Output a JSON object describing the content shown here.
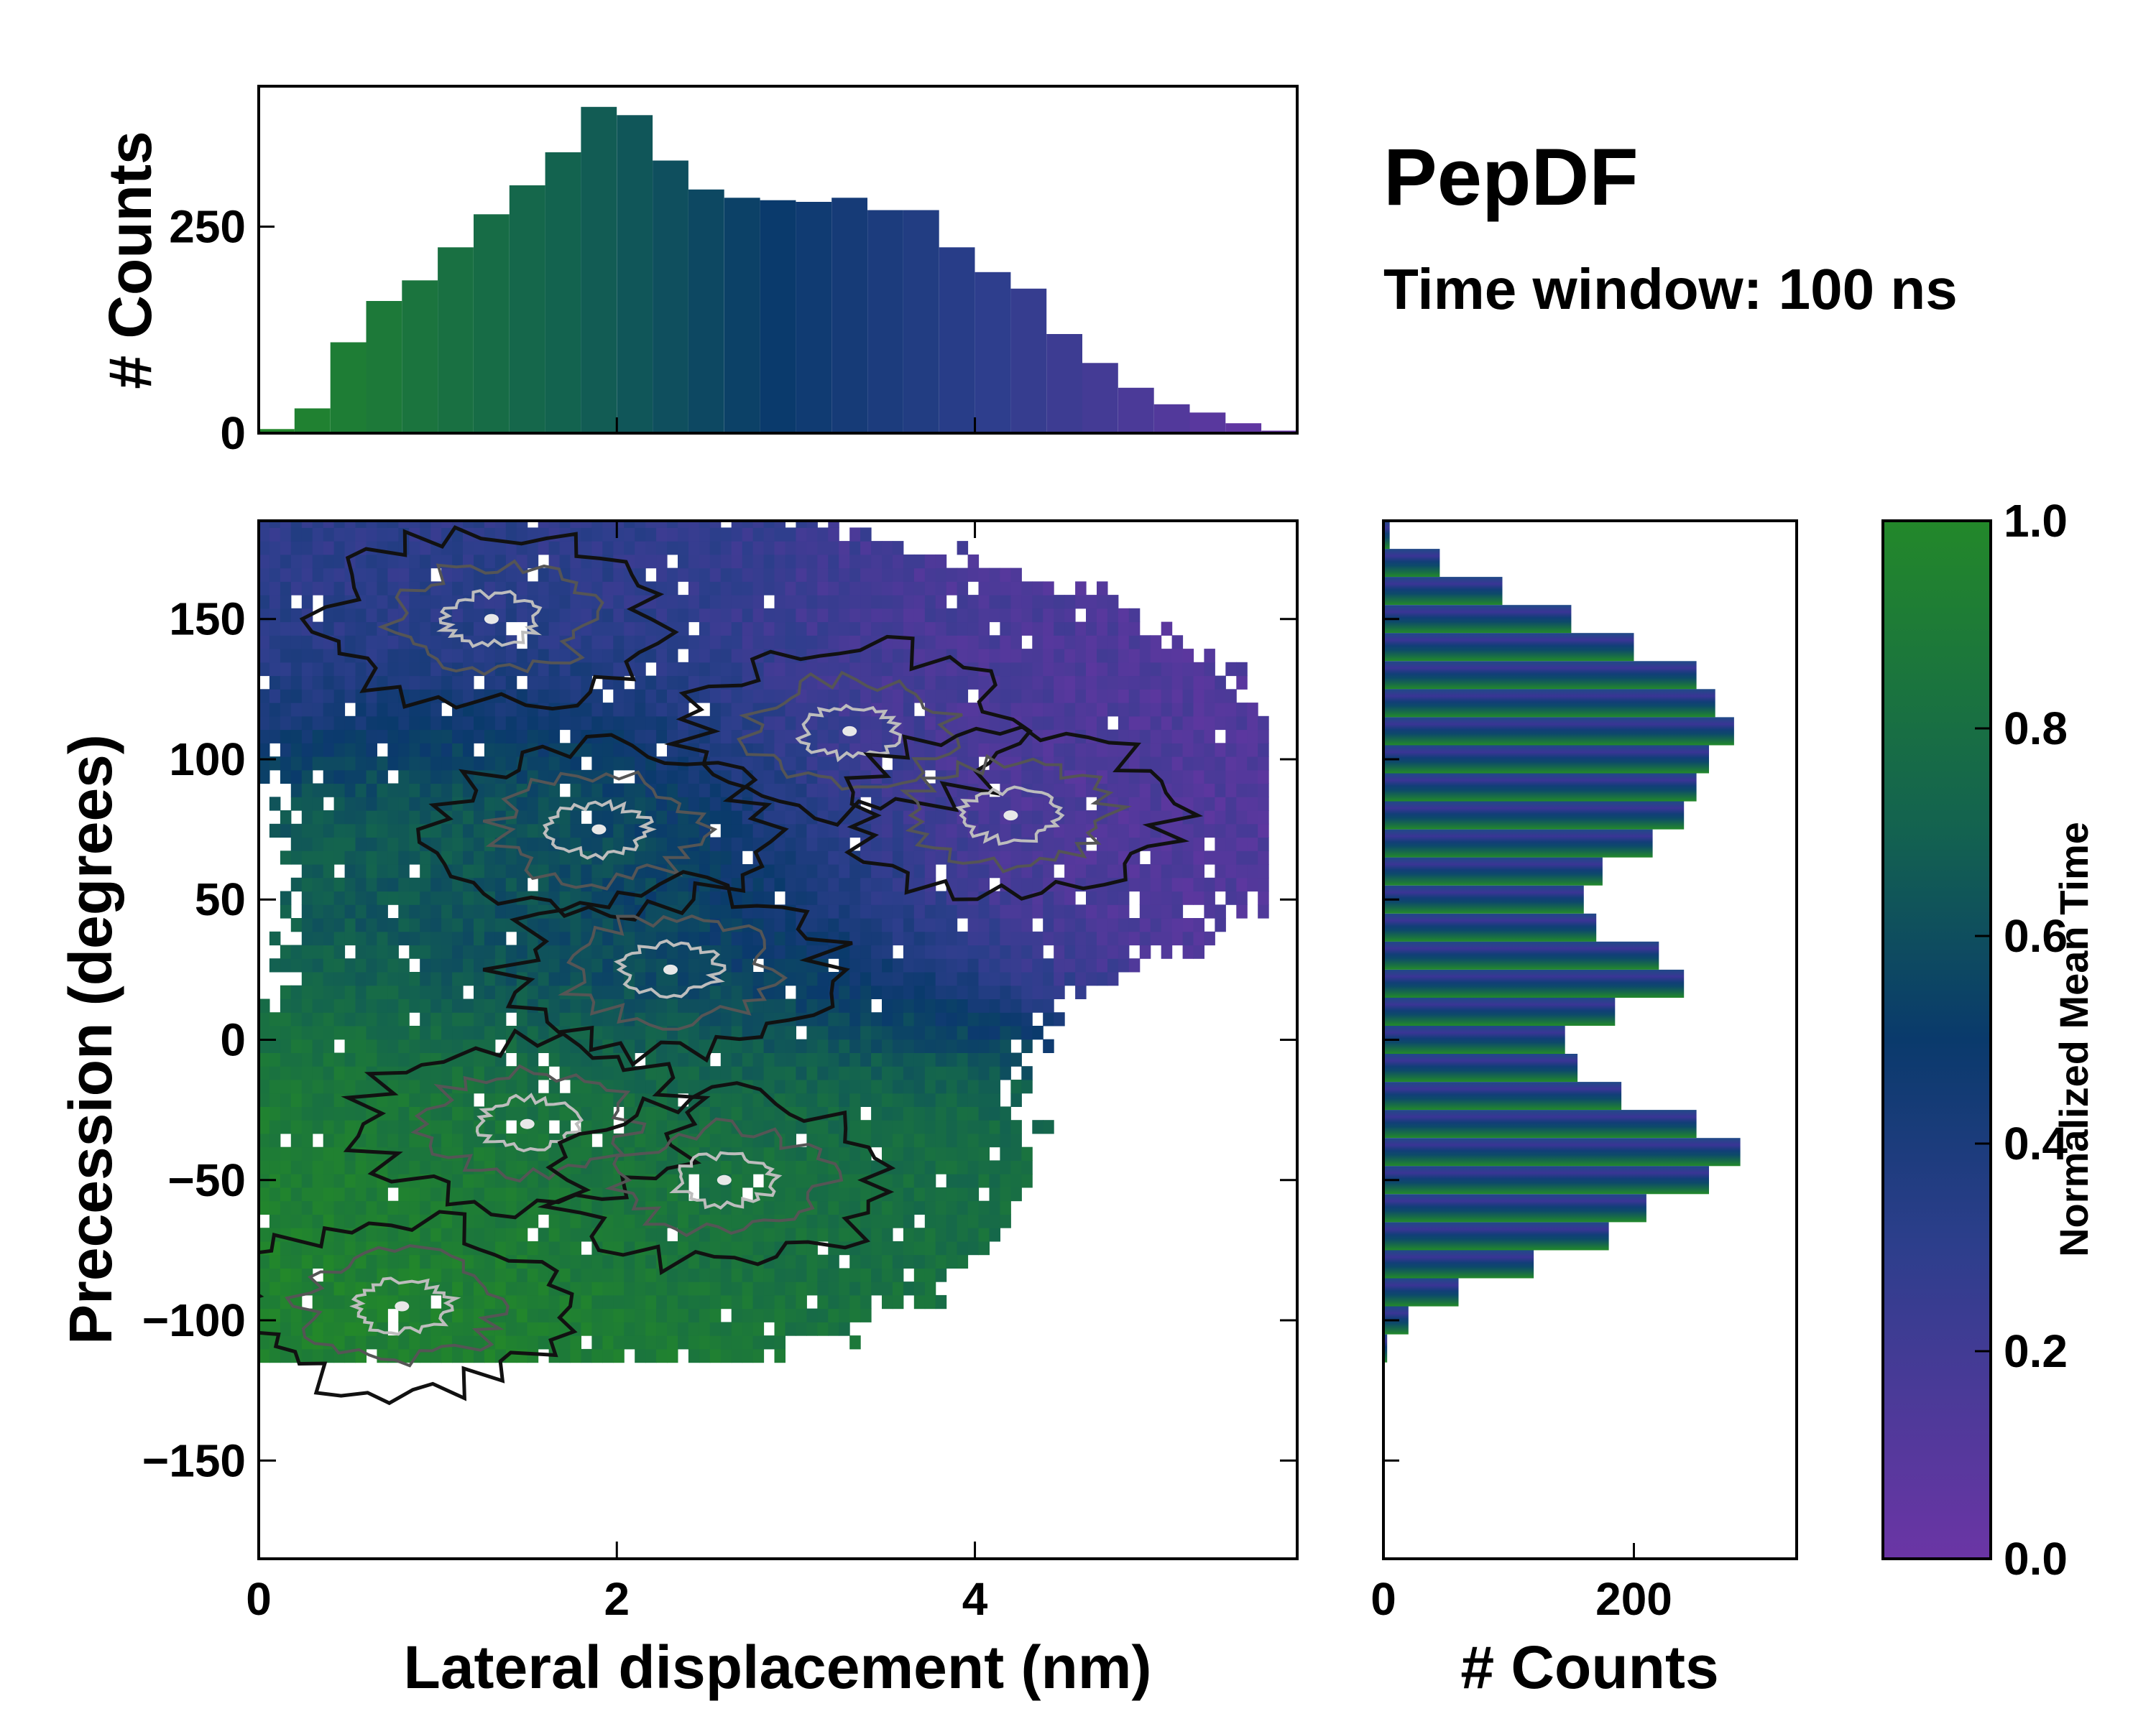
{
  "title": "PepDF",
  "subtitle": "Time window: 100 ns",
  "colormap": {
    "low": "#6b35a5",
    "mid_low": "#2d3e8c",
    "mid": "#0a3a6c",
    "mid_high": "#136250",
    "high": "#23882a"
  },
  "chart_data": [
    {
      "id": "joint",
      "type": "heatmap",
      "xlabel": "Lateral displacement (nm)",
      "ylabel": "Precession (degrees)",
      "xlim": [
        0,
        5.8
      ],
      "ylim": [
        -185,
        185
      ],
      "xticks": [
        0,
        2,
        4
      ],
      "yticks": [
        -150,
        -100,
        -50,
        0,
        50,
        100,
        150
      ],
      "color_metric": "Normalized Mean Time",
      "clusters": [
        {
          "x": 1.3,
          "y": 150,
          "mean_time": 0.3
        },
        {
          "x": 3.3,
          "y": 110,
          "mean_time": 0.15
        },
        {
          "x": 4.2,
          "y": 80,
          "mean_time": 0.12
        },
        {
          "x": 1.9,
          "y": 75,
          "mean_time": 0.75
        },
        {
          "x": 2.3,
          "y": 25,
          "mean_time": 0.45
        },
        {
          "x": 1.5,
          "y": -30,
          "mean_time": 0.9
        },
        {
          "x": 2.6,
          "y": -50,
          "mean_time": 0.8
        },
        {
          "x": 0.8,
          "y": -95,
          "mean_time": 0.95
        }
      ]
    },
    {
      "id": "x_marginal",
      "type": "bar",
      "ylabel": "# Counts",
      "ylim": [
        0,
        420
      ],
      "yticks": [
        0,
        250
      ],
      "bins": [
        {
          "x": 0.1,
          "count": 5
        },
        {
          "x": 0.3,
          "count": 30
        },
        {
          "x": 0.5,
          "count": 110
        },
        {
          "x": 0.7,
          "count": 160
        },
        {
          "x": 0.9,
          "count": 185
        },
        {
          "x": 1.1,
          "count": 225
        },
        {
          "x": 1.3,
          "count": 265
        },
        {
          "x": 1.5,
          "count": 300
        },
        {
          "x": 1.7,
          "count": 340
        },
        {
          "x": 1.9,
          "count": 395
        },
        {
          "x": 2.1,
          "count": 385
        },
        {
          "x": 2.3,
          "count": 330
        },
        {
          "x": 2.5,
          "count": 295
        },
        {
          "x": 2.7,
          "count": 285
        },
        {
          "x": 2.9,
          "count": 282
        },
        {
          "x": 3.1,
          "count": 280
        },
        {
          "x": 3.3,
          "count": 285
        },
        {
          "x": 3.5,
          "count": 270
        },
        {
          "x": 3.7,
          "count": 270
        },
        {
          "x": 3.9,
          "count": 225
        },
        {
          "x": 4.1,
          "count": 195
        },
        {
          "x": 4.3,
          "count": 175
        },
        {
          "x": 4.5,
          "count": 120
        },
        {
          "x": 4.7,
          "count": 85
        },
        {
          "x": 4.9,
          "count": 55
        },
        {
          "x": 5.1,
          "count": 35
        },
        {
          "x": 5.3,
          "count": 25
        },
        {
          "x": 5.5,
          "count": 12
        },
        {
          "x": 5.7,
          "count": 3
        }
      ]
    },
    {
      "id": "y_marginal",
      "type": "bar",
      "orientation": "horizontal",
      "xlabel": "# Counts",
      "xlim": [
        0,
        330
      ],
      "xticks": [
        0,
        200
      ],
      "bins": [
        {
          "y": 180,
          "count": 5
        },
        {
          "y": 170,
          "count": 45
        },
        {
          "y": 160,
          "count": 95
        },
        {
          "y": 150,
          "count": 150
        },
        {
          "y": 140,
          "count": 200
        },
        {
          "y": 130,
          "count": 250
        },
        {
          "y": 120,
          "count": 265
        },
        {
          "y": 110,
          "count": 280
        },
        {
          "y": 100,
          "count": 260
        },
        {
          "y": 90,
          "count": 250
        },
        {
          "y": 80,
          "count": 240
        },
        {
          "y": 70,
          "count": 215
        },
        {
          "y": 60,
          "count": 175
        },
        {
          "y": 50,
          "count": 160
        },
        {
          "y": 40,
          "count": 170
        },
        {
          "y": 30,
          "count": 220
        },
        {
          "y": 20,
          "count": 240
        },
        {
          "y": 10,
          "count": 185
        },
        {
          "y": 0,
          "count": 145
        },
        {
          "y": -10,
          "count": 155
        },
        {
          "y": -20,
          "count": 190
        },
        {
          "y": -30,
          "count": 250
        },
        {
          "y": -40,
          "count": 285
        },
        {
          "y": -50,
          "count": 260
        },
        {
          "y": -60,
          "count": 210
        },
        {
          "y": -70,
          "count": 180
        },
        {
          "y": -80,
          "count": 120
        },
        {
          "y": -90,
          "count": 60
        },
        {
          "y": -100,
          "count": 20
        },
        {
          "y": -110,
          "count": 3
        }
      ]
    },
    {
      "id": "colorbar",
      "type": "colorbar",
      "label": "Normalized Mean Time",
      "range": [
        0.0,
        1.0
      ],
      "ticks": [
        "0.0",
        "0.2",
        "0.4",
        "0.6",
        "0.8",
        "1.0"
      ]
    }
  ]
}
